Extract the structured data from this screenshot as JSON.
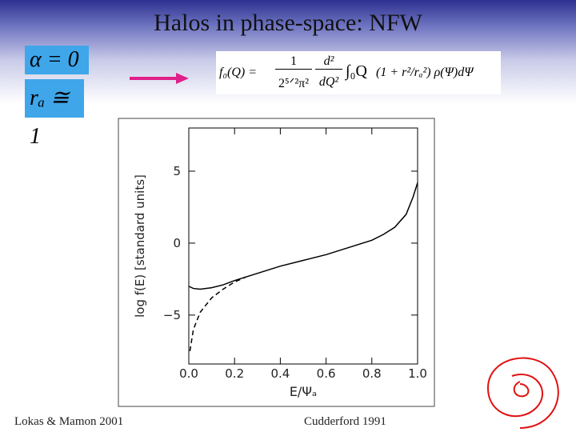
{
  "slide": {
    "title": "Halos in phase-space: NFW",
    "alpha": "α = 0",
    "ra": "rₐ ≅ 1",
    "formula": {
      "lhs": "f₀(Q) =",
      "num1": "1",
      "den1": "2⁵ᐟ²π²",
      "num2": "d²",
      "den2": "dQ²",
      "integral": "∫₀Q",
      "body": "(1 + r²/rₐ²) ρ(Ψ)dΨ"
    },
    "footer_left": "Lokas & Mamon 2001",
    "footer_right": "Cudderford 1991"
  },
  "chart_data": {
    "type": "line",
    "xlabel": "E/Ψₐ",
    "ylabel": "log f(E)  [standard units]",
    "xlim": [
      0,
      1
    ],
    "ylim": [
      -8.4,
      8
    ],
    "xticks": [
      {
        "value": 0,
        "label": "0.0"
      },
      {
        "value": 0.2,
        "label": "0.2"
      },
      {
        "value": 0.4,
        "label": "0.4"
      },
      {
        "value": 0.6,
        "label": "0.6"
      },
      {
        "value": 0.8,
        "label": "0.8"
      },
      {
        "value": 1,
        "label": "1.0"
      }
    ],
    "yticks": [
      {
        "value": -5,
        "label": "−5"
      },
      0,
      5
    ],
    "series": [
      {
        "color": "#000000",
        "dash": false,
        "x": [
          0.0,
          0.02,
          0.05,
          0.1,
          0.15,
          0.2,
          0.3,
          0.4,
          0.5,
          0.6,
          0.7,
          0.8,
          0.85,
          0.9,
          0.95,
          0.98,
          1.0
        ],
        "values": [
          -3.0,
          -3.15,
          -3.2,
          -3.1,
          -2.9,
          -2.6,
          -2.1,
          -1.6,
          -1.2,
          -0.8,
          -0.3,
          0.2,
          0.6,
          1.1,
          2.0,
          3.2,
          4.2
        ]
      },
      {
        "color": "#000000",
        "dash": true,
        "x": [
          0.005,
          0.02,
          0.05,
          0.1,
          0.15,
          0.2,
          0.25
        ],
        "values": [
          -7.5,
          -6.0,
          -4.8,
          -3.8,
          -3.2,
          -2.7,
          -2.35
        ]
      }
    ]
  }
}
